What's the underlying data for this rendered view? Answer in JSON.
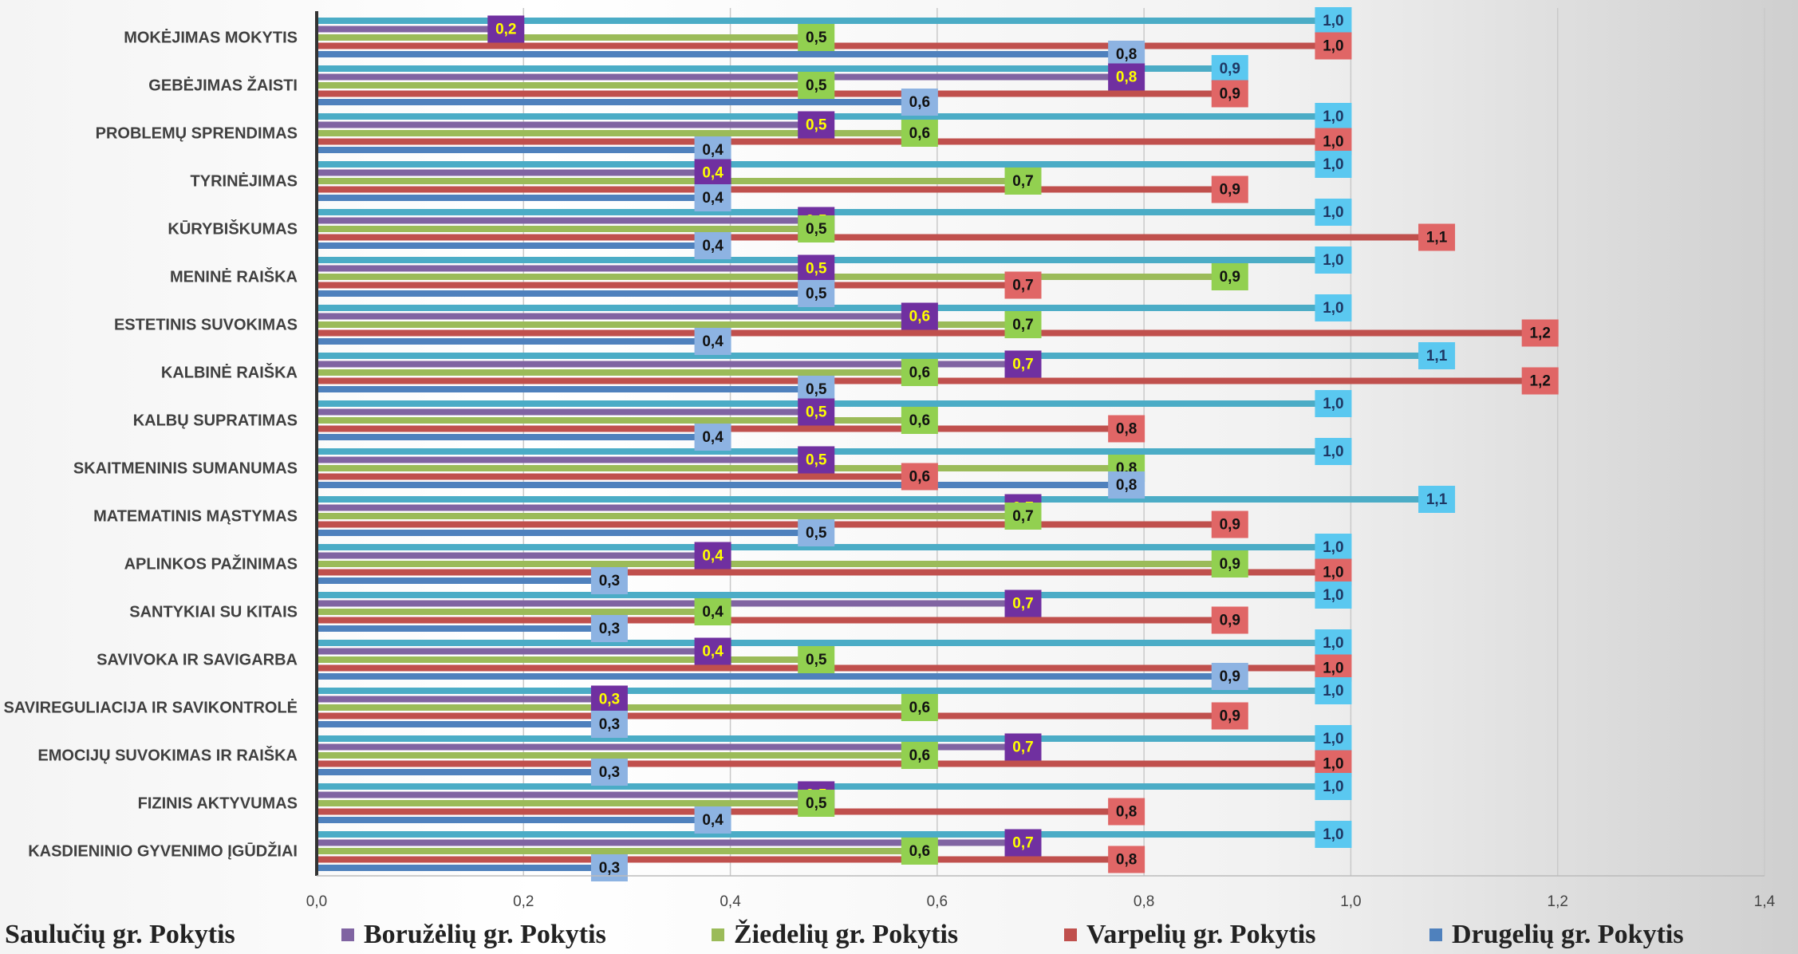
{
  "chart_data": {
    "type": "bar",
    "orientation": "horizontal",
    "categories": [
      "MOKĖJIMAS MOKYTIS",
      "GEBĖJIMAS ŽAISTI",
      "PROBLEMŲ SPRENDIMAS",
      "TYRINĖJIMAS",
      "KŪRYBIŠKUMAS",
      "MENINĖ RAIŠKA",
      "ESTETINIS SUVOKIMAS",
      "KALBINĖ RAIŠKA",
      "KALBŲ SUPRATIMAS",
      "SKAITMENINIS SUMANUMAS",
      "MATEMATINIS MĄSTYMAS",
      "APLINKOS PAŽINIMAS",
      "SANTYKIAI SU KITAIS",
      "SAVIVOKA IR SAVIGARBA",
      "SAVIREGULIACIJA IR SAVIKONTROLĖ",
      "EMOCIJŲ SUVOKIMAS IR RAIŠKA",
      "FIZINIS AKTYVUMAS",
      "KASDIENINIO GYVENIMO ĮGŪDŽIAI"
    ],
    "series": [
      {
        "name": "Saulučių gr. Pokytis",
        "color": "#4bacc6",
        "label_color": "#5ac8f0",
        "label_text_color": "#1f3864",
        "values": [
          1.0,
          0.9,
          1.0,
          1.0,
          1.0,
          1.0,
          1.0,
          1.1,
          1.0,
          1.0,
          1.1,
          1.0,
          1.0,
          1.0,
          1.0,
          1.0,
          1.0,
          1.0
        ]
      },
      {
        "name": "Boružėlių gr. Pokytis",
        "color": "#8064a2",
        "label_color": "#7030a0",
        "label_text_color": "#ffff00",
        "values": [
          0.2,
          0.8,
          0.5,
          0.4,
          0.5,
          0.5,
          0.6,
          0.7,
          0.5,
          0.5,
          0.7,
          0.4,
          0.7,
          0.4,
          0.3,
          0.7,
          0.5,
          0.7
        ]
      },
      {
        "name": "Žiedelių gr. Pokytis",
        "color": "#9bbb59",
        "label_color": "#92d050",
        "label_text_color": "#111111",
        "values": [
          0.5,
          0.5,
          0.6,
          0.7,
          0.5,
          0.9,
          0.7,
          0.6,
          0.6,
          0.8,
          0.7,
          0.9,
          0.4,
          0.5,
          0.6,
          0.6,
          0.5,
          0.6
        ]
      },
      {
        "name": "Varpelių gr.  Pokytis",
        "color": "#c0504d",
        "label_color": "#e06666",
        "label_text_color": "#111111",
        "values": [
          1.0,
          0.9,
          1.0,
          0.9,
          1.1,
          0.7,
          1.2,
          1.2,
          0.8,
          0.6,
          0.9,
          1.0,
          0.9,
          1.0,
          0.9,
          1.0,
          0.8,
          0.8
        ]
      },
      {
        "name": "Drugelių gr.  Pokytis",
        "color": "#4f81bd",
        "label_color": "#8db3e2",
        "label_text_color": "#111111",
        "values": [
          0.8,
          0.6,
          0.4,
          0.4,
          0.4,
          0.5,
          0.4,
          0.5,
          0.4,
          0.8,
          0.5,
          0.3,
          0.3,
          0.9,
          0.3,
          0.3,
          0.4,
          0.3
        ]
      }
    ],
    "xlim": [
      0,
      1.4
    ],
    "xticks": [
      "0,0",
      "0,2",
      "0,4",
      "0,6",
      "0,8",
      "1,0",
      "1,2",
      "1,4"
    ],
    "gridlines": true,
    "legend_position": "bottom",
    "title": "",
    "xlabel": "",
    "ylabel": ""
  }
}
